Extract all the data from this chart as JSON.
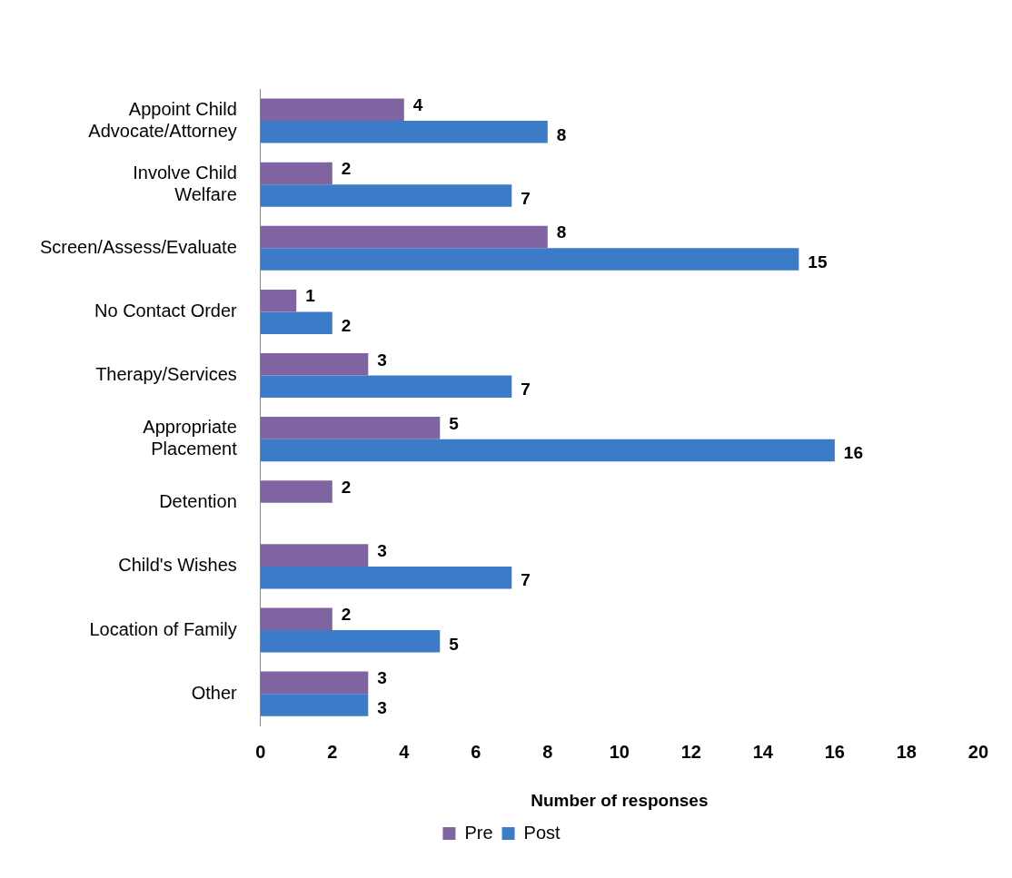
{
  "chart_data": {
    "type": "bar",
    "orientation": "horizontal",
    "xlabel": "Number of responses",
    "categories": [
      "Appoint Child Advocate/Attorney",
      "Involve Child Welfare",
      "Screen/Assess/Evaluate",
      "No Contact Order",
      "Therapy/Services",
      "Appropriate Placement",
      "Detention",
      "Child's Wishes",
      "Location of Family",
      "Other"
    ],
    "series": [
      {
        "name": "Pre",
        "color": "#8064a2",
        "values": [
          4,
          2,
          8,
          1,
          3,
          5,
          2,
          3,
          2,
          3
        ]
      },
      {
        "name": "Post",
        "color": "#3b7bc8",
        "values": [
          8,
          7,
          15,
          2,
          7,
          16,
          null,
          7,
          5,
          3
        ]
      }
    ],
    "xlim": [
      0,
      20
    ],
    "xticks": [
      0,
      2,
      4,
      6,
      8,
      10,
      12,
      14,
      16,
      18,
      20
    ],
    "grid": false,
    "legend": "bottom",
    "data_labels": true
  }
}
